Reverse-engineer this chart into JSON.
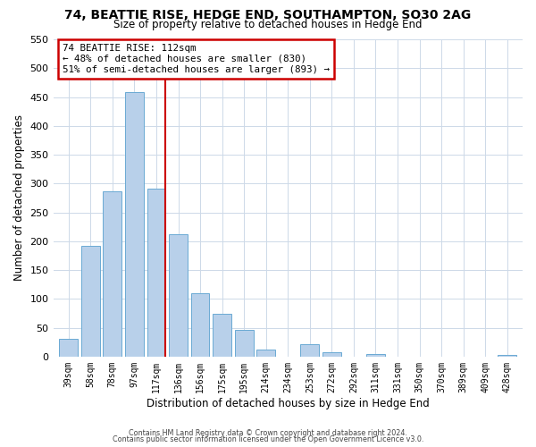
{
  "title": "74, BEATTIE RISE, HEDGE END, SOUTHAMPTON, SO30 2AG",
  "subtitle": "Size of property relative to detached houses in Hedge End",
  "xlabel": "Distribution of detached houses by size in Hedge End",
  "ylabel": "Number of detached properties",
  "bar_labels": [
    "39sqm",
    "58sqm",
    "78sqm",
    "97sqm",
    "117sqm",
    "136sqm",
    "156sqm",
    "175sqm",
    "195sqm",
    "214sqm",
    "234sqm",
    "253sqm",
    "272sqm",
    "292sqm",
    "311sqm",
    "331sqm",
    "350sqm",
    "370sqm",
    "389sqm",
    "409sqm",
    "428sqm"
  ],
  "bar_values": [
    30,
    192,
    287,
    458,
    291,
    212,
    110,
    74,
    46,
    12,
    0,
    22,
    8,
    0,
    5,
    0,
    0,
    0,
    0,
    0,
    3
  ],
  "bar_color": "#b8d0ea",
  "bar_edge_color": "#6aaad4",
  "vline_color": "#cc0000",
  "ylim": [
    0,
    550
  ],
  "yticks": [
    0,
    50,
    100,
    150,
    200,
    250,
    300,
    350,
    400,
    450,
    500,
    550
  ],
  "annotation_title": "74 BEATTIE RISE: 112sqm",
  "annotation_line2": "← 48% of detached houses are smaller (830)",
  "annotation_line3": "51% of semi-detached houses are larger (893) →",
  "annotation_box_color": "#cc0000",
  "footer_line1": "Contains HM Land Registry data © Crown copyright and database right 2024.",
  "footer_line2": "Contains public sector information licensed under the Open Government Licence v3.0.",
  "background_color": "#ffffff",
  "grid_color": "#cdd9e8"
}
